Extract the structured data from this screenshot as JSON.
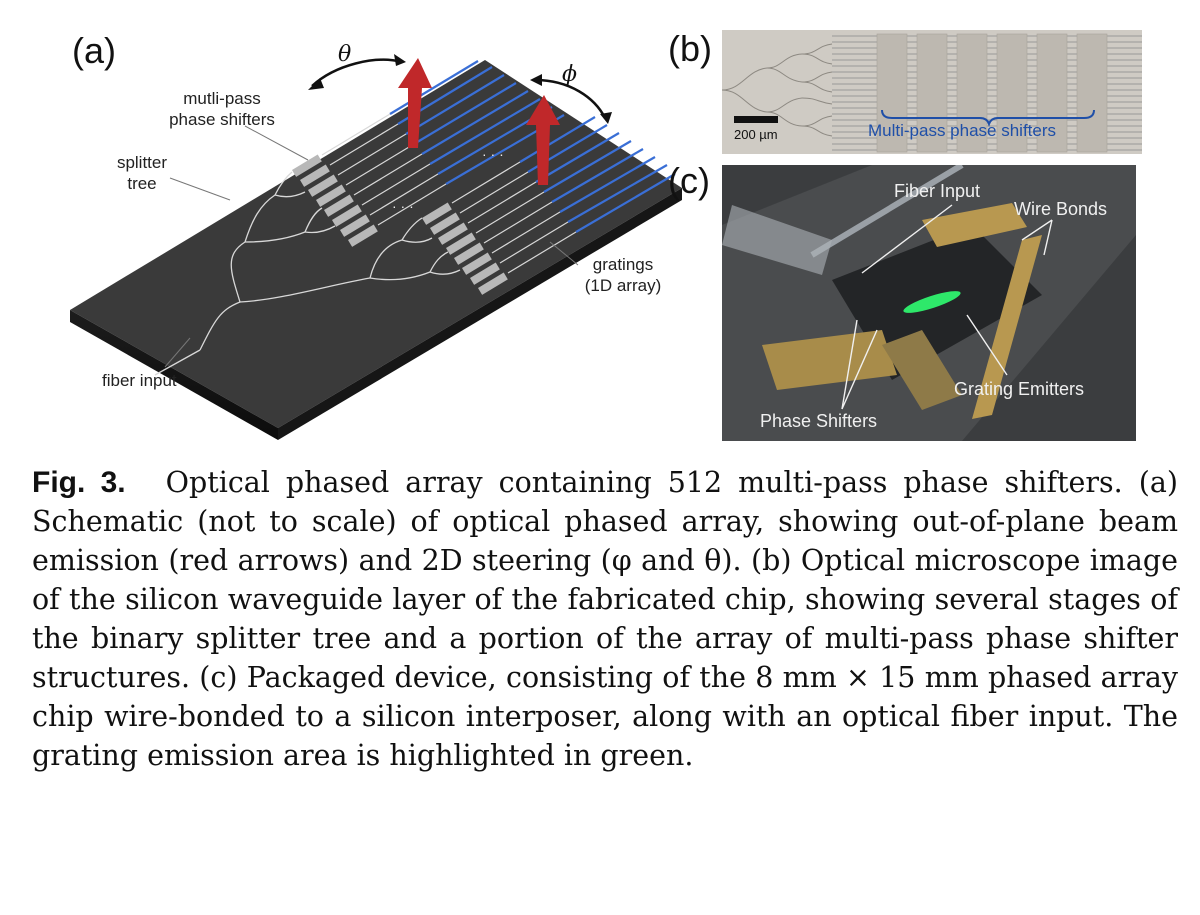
{
  "panel_a": {
    "letter": "(a)",
    "theta": "θ",
    "phi": "ϕ",
    "label_phase_shifters_line1": "mutli-pass",
    "label_phase_shifters_line2": "phase shifters",
    "label_splitter_line1": "splitter",
    "label_splitter_line2": "tree",
    "label_gratings_line1": "gratings",
    "label_gratings_line2": "(1D array)",
    "label_fiber": "fiber input",
    "ellipsis": "· · ·"
  },
  "panel_b": {
    "letter": "(b)",
    "scale_bar": "200 µm",
    "bracket_label": "Multi-pass phase shifters"
  },
  "panel_c": {
    "letter": "(c)",
    "fiber_input": "Fiber Input",
    "wire_bonds": "Wire Bonds",
    "grating_emitters": "Grating Emitters",
    "phase_shifters": "Phase Shifters"
  },
  "caption": {
    "label": "Fig. 3.",
    "text": "Optical phased array containing 512 multi-pass phase shifters. (a) Schematic (not to scale) of optical phased array, showing out-of-plane beam emission (red arrows) and 2D steering (φ and θ). (b) Optical microscope image of the silicon waveguide layer of the fabricated chip, showing several stages of the binary splitter tree and a portion of the array of multi-pass phase shifter structures. (c) Packaged device, consisting of the 8 mm × 15 mm phased array chip wire-bonded to a silicon interposer, along with an optical fiber input. The grating emission area is highlighted in green."
  },
  "colors": {
    "chip": "#333333",
    "waveguide": "#e8e8e8",
    "grating": "#3a6fd6",
    "arrow": "#c0282a",
    "bracket": "#1f4fa8",
    "emission": "#2ee86a",
    "gold": "#b89850"
  }
}
